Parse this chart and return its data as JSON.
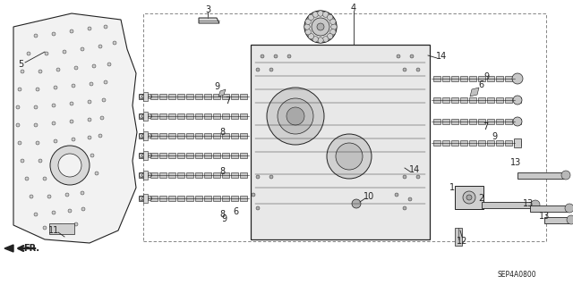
{
  "background_color": "#ffffff",
  "diagram_code": "SEP4A0800",
  "line_color": "#222222",
  "label_fontsize": 7
}
